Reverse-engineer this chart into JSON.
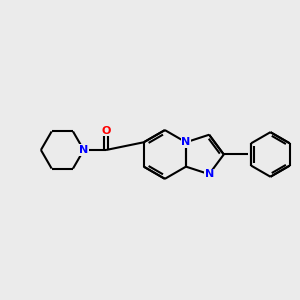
{
  "background_color": "#ebebeb",
  "bond_color": "#000000",
  "N_color": "#0000ff",
  "O_color": "#ff0000",
  "line_width": 1.5,
  "figsize": [
    3.0,
    3.0
  ],
  "dpi": 100,
  "xlim": [
    0,
    10
  ],
  "ylim": [
    2,
    8
  ]
}
